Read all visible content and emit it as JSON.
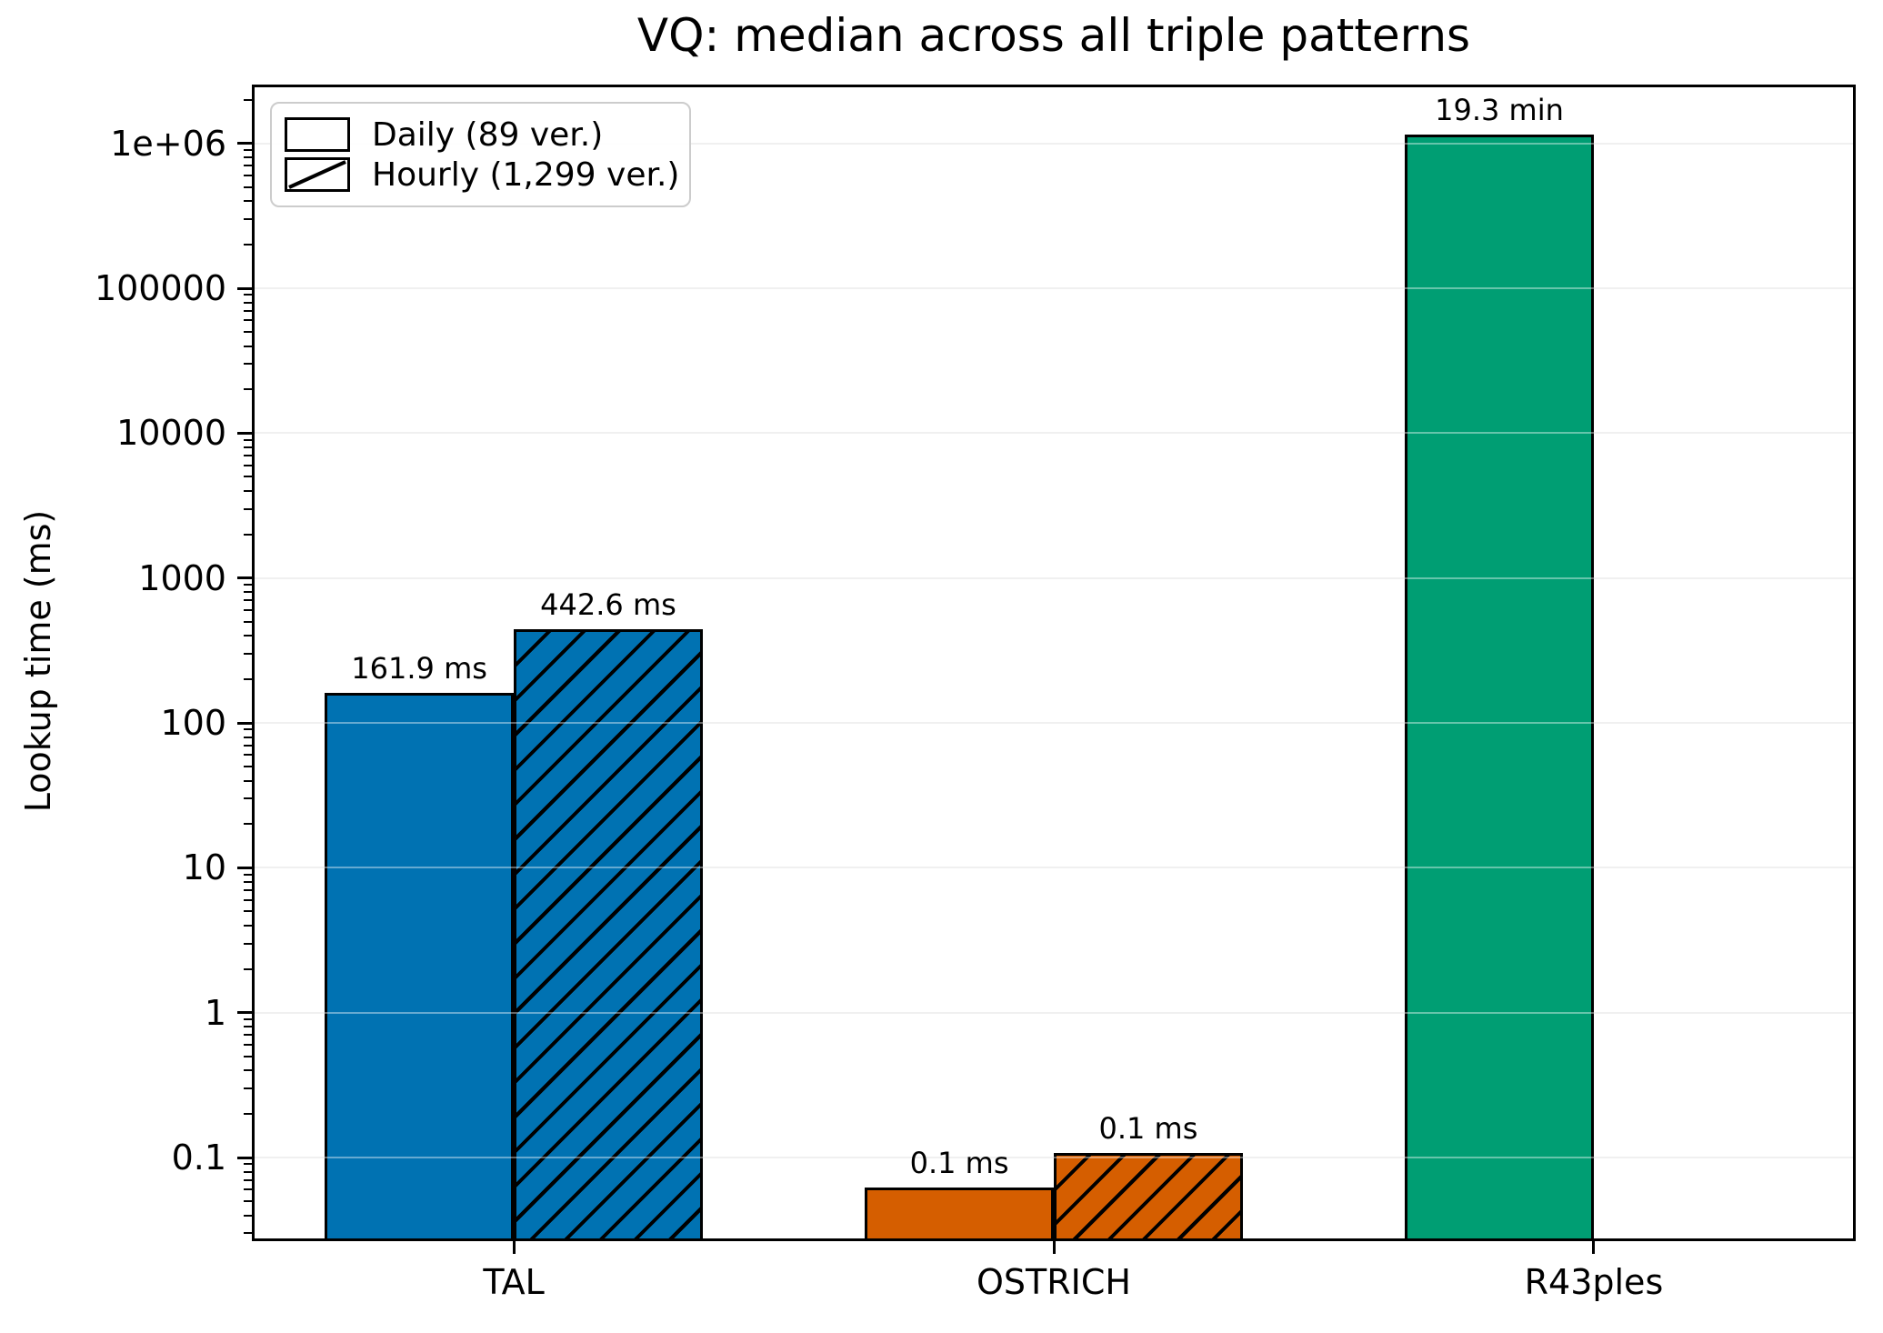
{
  "figure": {
    "title": "VQ: median across all triple patterns",
    "background": "#ffffff"
  },
  "chart_data": {
    "type": "bar",
    "title": "VQ: median across all triple patterns",
    "xlabel": "",
    "ylabel": "Lookup time (ms)",
    "yscale": "log",
    "ylim": [
      0.0265,
      2550000
    ],
    "xlim": [
      -0.485,
      2.485
    ],
    "bar_width_units": 0.35,
    "grid": "major-horizontal",
    "legend_position": "upper-left",
    "categories": [
      "TAL",
      "OSTRICH",
      "R43ples"
    ],
    "category_colors": [
      "#0072b2",
      "#d55e00",
      "#009e73"
    ],
    "yticks": [
      {
        "value": 0.1,
        "label": "0.1"
      },
      {
        "value": 1,
        "label": "1"
      },
      {
        "value": 10,
        "label": "10"
      },
      {
        "value": 100,
        "label": "100"
      },
      {
        "value": 1000,
        "label": "1000"
      },
      {
        "value": 10000,
        "label": "10000"
      },
      {
        "value": 100000,
        "label": "100000"
      },
      {
        "value": 1000000,
        "label": "1e+06"
      }
    ],
    "series": [
      {
        "name": "Daily",
        "legend": "Daily (89 ver.)",
        "hatch": false,
        "values": [
          161.9,
          0.062,
          1158000
        ],
        "labels": [
          "161.9 ms",
          "0.1 ms",
          "19.3 min"
        ]
      },
      {
        "name": "Hourly",
        "legend": "Hourly (1,299 ver.)",
        "hatch": true,
        "values": [
          442.6,
          0.107,
          null
        ],
        "labels": [
          "442.6 ms",
          "0.1 ms",
          null
        ]
      }
    ],
    "colors": {
      "grid": "#e6e6e6",
      "axis": "#000000",
      "hatch": "#000000",
      "text": "#000000"
    }
  }
}
